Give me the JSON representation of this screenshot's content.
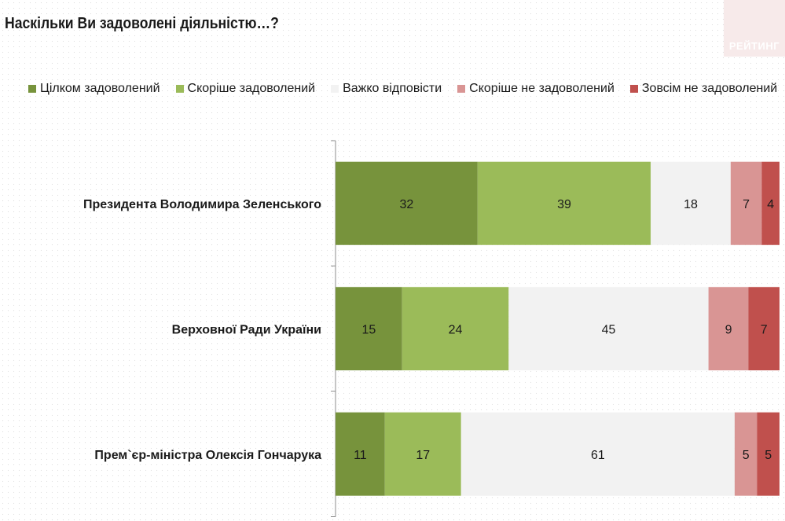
{
  "title": "Наскільки Ви задоволені діяльністю…?",
  "logo": {
    "text": "РЕЙТИНГ"
  },
  "chart_data": {
    "type": "bar",
    "orientation": "horizontal",
    "stacked": true,
    "categories": [
      "Президента Володимира Зеленського",
      "Верховної Ради України",
      "Прем`єр-міністра Олексія Гончарука"
    ],
    "series": [
      {
        "name": "Цілком задоволений",
        "color": "#77933c",
        "values": [
          32,
          15,
          11
        ]
      },
      {
        "name": "Скоріше задоволений",
        "color": "#9bbb59",
        "values": [
          39,
          24,
          17
        ]
      },
      {
        "name": "Важко відповісти",
        "color": "#f2f2f2",
        "values": [
          18,
          45,
          61
        ]
      },
      {
        "name": "Скоріше не задоволений",
        "color": "#d99594",
        "values": [
          7,
          9,
          5
        ]
      },
      {
        "name": "Зовсім не задоволений",
        "color": "#c0504d",
        "values": [
          4,
          7,
          5
        ]
      }
    ],
    "legend_position": "top",
    "grid": false
  }
}
